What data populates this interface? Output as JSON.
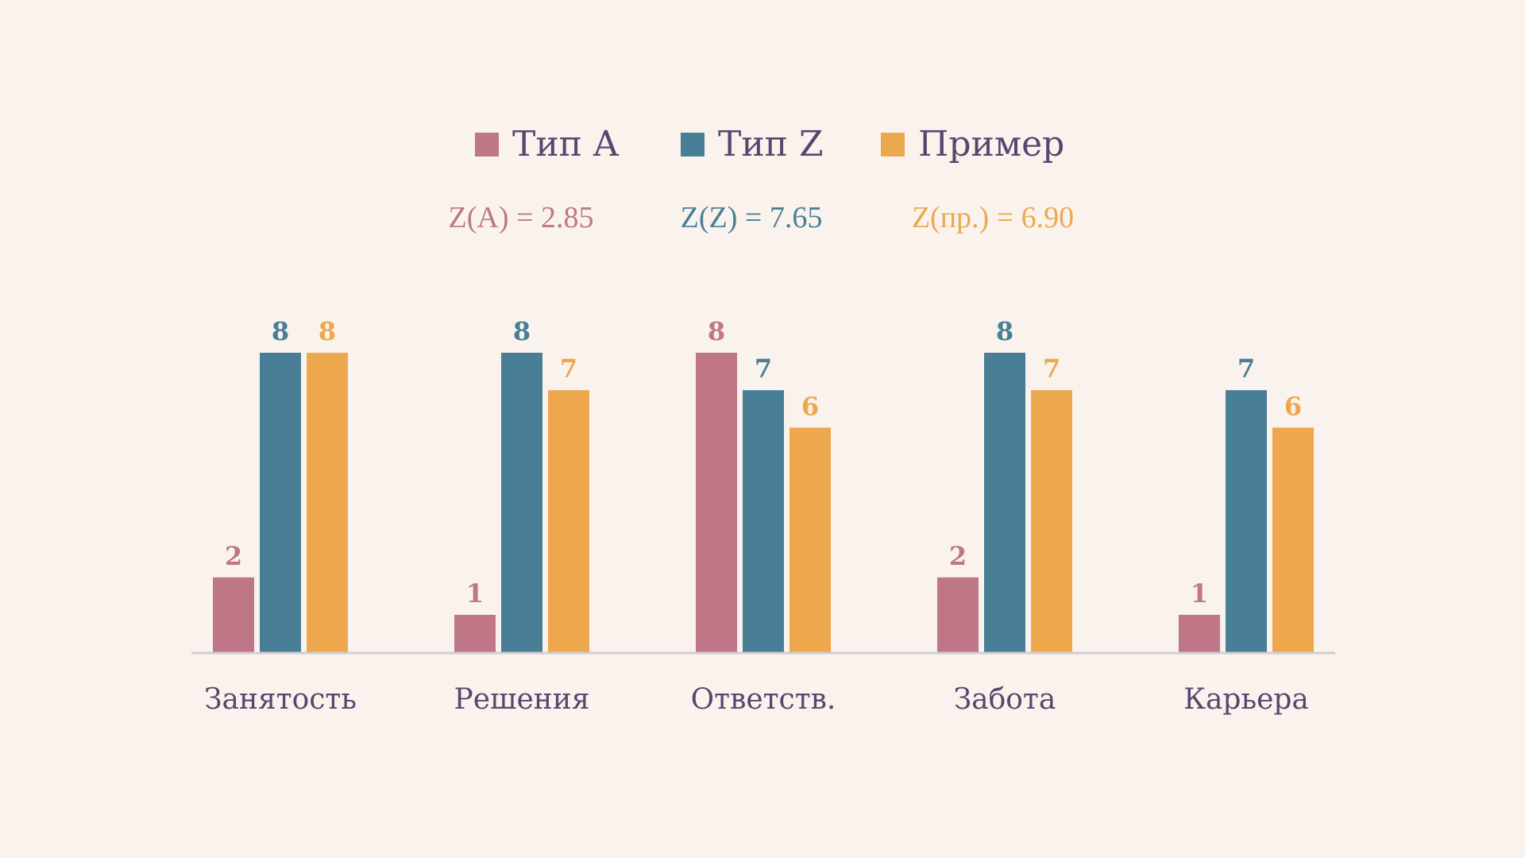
{
  "colors": {
    "background": "#faf3ed",
    "text": "#55486f",
    "axis": "#d3cdd3",
    "type_a": "#bf7788",
    "type_z": "#497f96",
    "example": "#eda84e"
  },
  "legend": [
    {
      "label": "Тип A",
      "color": "#bf7788"
    },
    {
      "label": "Тип Z",
      "color": "#497f96"
    },
    {
      "label": "Пример",
      "color": "#eda84e"
    }
  ],
  "stats": [
    {
      "text": "Z(A) = 2.85",
      "color": "#bf7788"
    },
    {
      "text": "Z(Z) = 7.65",
      "color": "#497f96"
    },
    {
      "text": "Z(пр.) = 6.90",
      "color": "#eda84e"
    }
  ],
  "chart_data": {
    "type": "bar",
    "categories": [
      "Занятость",
      "Решения",
      "Ответств.",
      "Забота",
      "Карьера"
    ],
    "series": [
      {
        "name": "Тип A",
        "color": "#bf7788",
        "values": [
          2,
          1,
          8,
          2,
          1
        ]
      },
      {
        "name": "Тип Z",
        "color": "#497f96",
        "values": [
          8,
          8,
          7,
          8,
          7
        ]
      },
      {
        "name": "Пример",
        "color": "#eda84e",
        "values": [
          8,
          7,
          6,
          7,
          6
        ]
      }
    ],
    "ylim": [
      0,
      8
    ],
    "grid": false,
    "legend_position": "top-center",
    "data_labels": true,
    "title": "",
    "xlabel": "",
    "ylabel": ""
  }
}
